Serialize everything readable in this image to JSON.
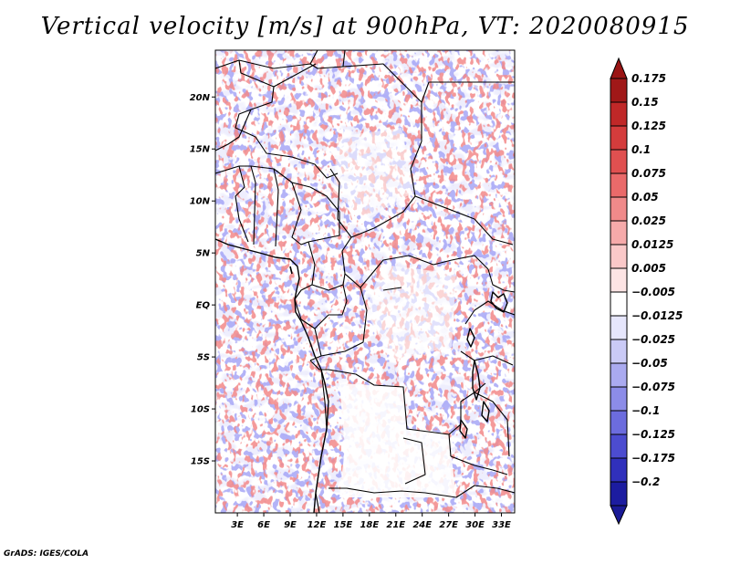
{
  "title": "Vertical velocity [m/s] at 900hPa, VT: 2020080915",
  "footer": "GrADS: IGES/COLA",
  "map": {
    "lat_labels": [
      {
        "lat": 20,
        "text": "20N"
      },
      {
        "lat": 15,
        "text": "15N"
      },
      {
        "lat": 10,
        "text": "10N"
      },
      {
        "lat": 5,
        "text": "5N"
      },
      {
        "lat": 0,
        "text": "EQ"
      },
      {
        "lat": -5,
        "text": "5S"
      },
      {
        "lat": -10,
        "text": "10S"
      },
      {
        "lat": -15,
        "text": "15S"
      }
    ],
    "lon_labels": [
      {
        "lon": 3,
        "text": "3E"
      },
      {
        "lon": 6,
        "text": "6E"
      },
      {
        "lon": 9,
        "text": "9E"
      },
      {
        "lon": 12,
        "text": "12E"
      },
      {
        "lon": 15,
        "text": "15E"
      },
      {
        "lon": 18,
        "text": "18E"
      },
      {
        "lon": 21,
        "text": "21E"
      },
      {
        "lon": 24,
        "text": "24E"
      },
      {
        "lon": 27,
        "text": "27E"
      },
      {
        "lon": 30,
        "text": "30E"
      },
      {
        "lon": 33,
        "text": "33E"
      }
    ],
    "lon_range": [
      0.5,
      34.5
    ],
    "lat_range": [
      -20.0,
      24.5
    ]
  },
  "colorbar": {
    "levels": [
      {
        "label": "0.175",
        "color": "#a01818"
      },
      {
        "label": "0.15",
        "color": "#c02828"
      },
      {
        "label": "0.125",
        "color": "#d43c3c"
      },
      {
        "label": "0.1",
        "color": "#e05050"
      },
      {
        "label": "0.075",
        "color": "#ea6a6a"
      },
      {
        "label": "0.05",
        "color": "#f08a8a"
      },
      {
        "label": "0.025",
        "color": "#f6aaaa"
      },
      {
        "label": "0.0125",
        "color": "#fac8c8"
      },
      {
        "label": "0.005",
        "color": "#fde4e4"
      },
      {
        "label": "−0.005",
        "color": "#ffffff"
      },
      {
        "label": "−0.0125",
        "color": "#e6e6fc"
      },
      {
        "label": "−0.025",
        "color": "#cacaf6"
      },
      {
        "label": "−0.05",
        "color": "#aaaaf0"
      },
      {
        "label": "−0.075",
        "color": "#8c8ce8"
      },
      {
        "label": "−0.1",
        "color": "#6c6cde"
      },
      {
        "label": "−0.125",
        "color": "#4c4cd0"
      },
      {
        "label": "−0.175",
        "color": "#3030bc"
      },
      {
        "label": "−0.2",
        "color": "#1c1ca0"
      }
    ],
    "top_arrow_color": "#9a1414",
    "bottom_arrow_color": "#1a1a96"
  }
}
